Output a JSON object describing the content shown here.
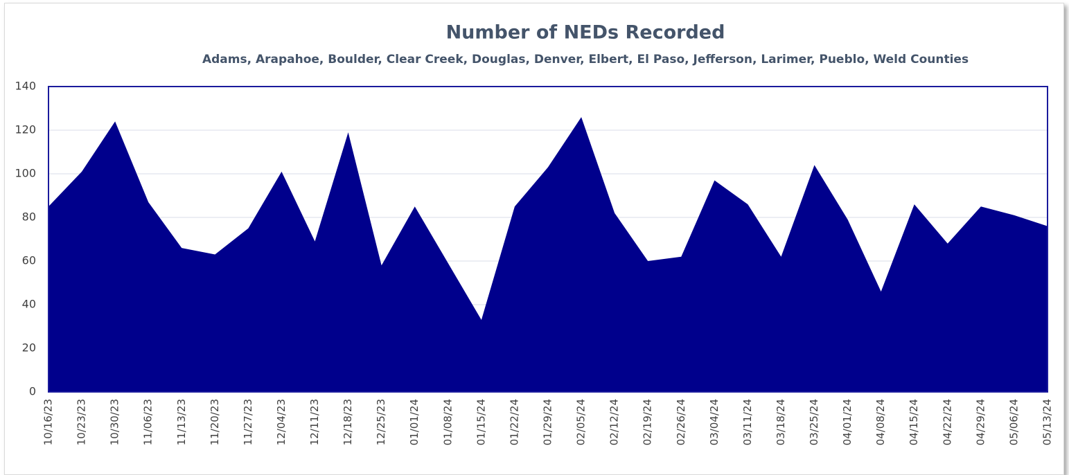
{
  "chart_data": {
    "type": "area",
    "title": "Number of NEDs Recorded",
    "subtitle": "Adams, Arapahoe, Boulder, Clear Creek, Douglas, Denver, Elbert, El Paso, Jefferson, Larimer, Pueblo, Weld Counties",
    "categories": [
      "10/16/23",
      "10/23/23",
      "10/30/23",
      "11/06/23",
      "11/13/23",
      "11/20/23",
      "11/27/23",
      "12/04/23",
      "12/11/23",
      "12/18/23",
      "12/25/23",
      "01/01/24",
      "01/08/24",
      "01/15/24",
      "01/22/24",
      "01/29/24",
      "02/05/24",
      "02/12/24",
      "02/19/24",
      "02/26/24",
      "03/04/24",
      "03/11/24",
      "03/18/24",
      "03/25/24",
      "04/01/24",
      "04/08/24",
      "04/15/24",
      "04/22/24",
      "04/29/24",
      "05/06/24",
      "05/13/24"
    ],
    "values": [
      85,
      101,
      124,
      87,
      66,
      63,
      75,
      101,
      69,
      119,
      58,
      85,
      59,
      33,
      85,
      103,
      126,
      82,
      60,
      62,
      97,
      86,
      62,
      104,
      79,
      46,
      86,
      68,
      85,
      81,
      76
    ],
    "color": "#00008c",
    "ylim": [
      0,
      140
    ],
    "yticks": [
      0,
      20,
      40,
      60,
      80,
      100,
      120,
      140
    ],
    "grid": true
  }
}
